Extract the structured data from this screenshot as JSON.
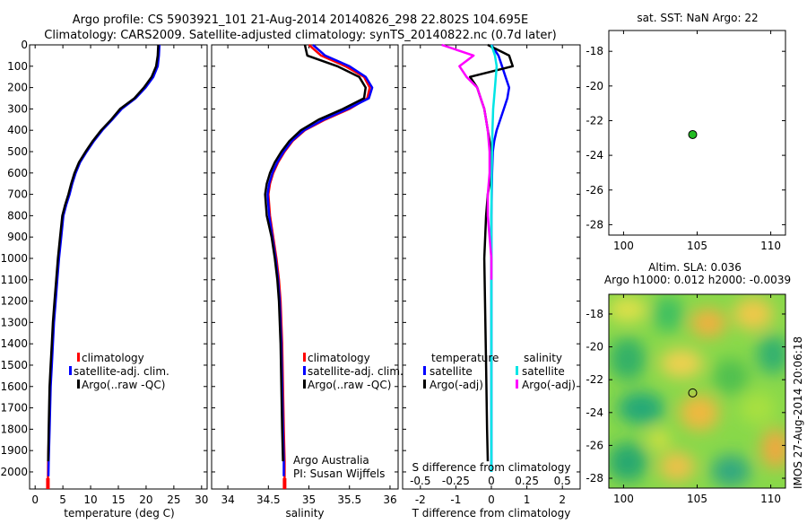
{
  "header": {
    "line1": "Argo profile: CS 5903921_101 21-Aug-2014 20140826_298 22.802S 104.695E",
    "line2": "Climatology: CARS2009. Satellite-adjusted climatology: synTS_20140822.nc (0.7d later)"
  },
  "colors": {
    "climatology": "#ff0000",
    "satellite": "#0000ff",
    "argo": "#000000",
    "sal_satellite": "#00e5e5",
    "sal_argo": "#ff00ff",
    "marker": "#22bb22"
  },
  "chart_data": [
    {
      "type": "line",
      "id": "temperature",
      "xlabel": "temperature (deg C)",
      "ylabel": "",
      "xlim": [
        -1,
        31
      ],
      "ylim": [
        2080,
        0
      ],
      "xticks": [
        0,
        5,
        10,
        15,
        20,
        25,
        30
      ],
      "yticks": [
        0,
        100,
        200,
        300,
        400,
        500,
        600,
        700,
        800,
        900,
        1000,
        1100,
        1200,
        1300,
        1400,
        1500,
        1600,
        1700,
        1800,
        1900,
        2000
      ],
      "legend": [
        "climatology",
        "satellite-adj. clim.",
        "Argo(..raw -QC)"
      ],
      "series": [
        {
          "name": "climatology",
          "color": "#ff0000",
          "x": [
            22.3,
            22.2,
            22.0,
            21.2,
            19.8,
            18.0,
            15.5,
            13.8,
            12.0,
            10.5,
            9.2,
            8.0,
            7.2,
            6.6,
            6.1,
            5.5,
            5.0,
            4.6,
            4.2,
            3.9,
            3.6,
            3.3,
            3.1,
            2.9,
            2.7,
            2.5,
            2.35,
            2.3
          ],
          "y": [
            0,
            50,
            100,
            150,
            200,
            250,
            300,
            350,
            400,
            450,
            500,
            550,
            600,
            650,
            700,
            750,
            800,
            900,
            1000,
            1100,
            1200,
            1300,
            1400,
            1500,
            1600,
            1800,
            1950,
            2060
          ]
        },
        {
          "name": "satellite-adj. clim.",
          "color": "#0000ff",
          "x": [
            22.4,
            22.3,
            22.1,
            21.3,
            19.9,
            18.1,
            15.6,
            13.9,
            12.1,
            10.6,
            9.3,
            8.1,
            7.3,
            6.7,
            6.2,
            5.6,
            5.1,
            4.7,
            4.3,
            4.0,
            3.7,
            3.4,
            3.2,
            3.0,
            2.8,
            2.6,
            2.45,
            2.4
          ],
          "y": [
            0,
            50,
            100,
            150,
            200,
            250,
            300,
            350,
            400,
            450,
            500,
            550,
            600,
            650,
            700,
            750,
            800,
            900,
            1000,
            1100,
            1200,
            1300,
            1400,
            1500,
            1600,
            1800,
            1950,
            2020
          ]
        },
        {
          "name": "Argo(..raw -QC)",
          "color": "#000000",
          "x": [
            22.2,
            22.1,
            21.8,
            21.0,
            19.6,
            17.9,
            15.3,
            13.7,
            11.9,
            10.4,
            9.1,
            7.9,
            7.1,
            6.5,
            6.0,
            5.4,
            4.9,
            4.5,
            4.1,
            3.8,
            3.5,
            3.2,
            3.0,
            2.8,
            2.6,
            2.45,
            2.35
          ],
          "y": [
            0,
            50,
            100,
            150,
            200,
            250,
            300,
            350,
            400,
            450,
            500,
            550,
            600,
            650,
            700,
            750,
            800,
            900,
            1000,
            1100,
            1200,
            1300,
            1400,
            1500,
            1600,
            1800,
            1950
          ]
        }
      ]
    },
    {
      "type": "line",
      "id": "salinity",
      "xlabel": "salinity",
      "ylabel": "",
      "xlim": [
        33.8,
        36.1
      ],
      "ylim": [
        2080,
        0
      ],
      "xticks": [
        34,
        34.5,
        35,
        35.5,
        36
      ],
      "xtick_labels": [
        "34",
        "34.5",
        "35",
        "35.5",
        "36"
      ],
      "legend": [
        "climatology",
        "satellite-adj. clim.",
        "Argo(..raw -QC)"
      ],
      "annotation": [
        "Argo Australia",
        "PI: Susan Wijffels"
      ],
      "series": [
        {
          "name": "climatology",
          "color": "#ff0000",
          "x": [
            35.0,
            35.15,
            35.45,
            35.68,
            35.75,
            35.72,
            35.5,
            35.2,
            34.95,
            34.8,
            34.7,
            34.62,
            34.56,
            34.52,
            34.5,
            34.52,
            34.56,
            34.6,
            34.63,
            34.65,
            34.67,
            34.68,
            34.69,
            34.7,
            34.7
          ],
          "y": [
            0,
            50,
            100,
            150,
            200,
            250,
            300,
            350,
            400,
            450,
            500,
            550,
            600,
            650,
            700,
            800,
            900,
            1000,
            1100,
            1200,
            1400,
            1600,
            1800,
            1950,
            2060
          ]
        },
        {
          "name": "satellite-adj. clim.",
          "color": "#0000ff",
          "x": [
            35.05,
            35.2,
            35.5,
            35.7,
            35.78,
            35.74,
            35.48,
            35.18,
            34.94,
            34.79,
            34.69,
            34.61,
            34.55,
            34.51,
            34.49,
            34.51,
            34.55,
            34.59,
            34.62,
            34.64,
            34.66,
            34.67,
            34.68,
            34.69,
            34.69
          ],
          "y": [
            0,
            50,
            100,
            150,
            200,
            250,
            300,
            350,
            400,
            450,
            500,
            550,
            600,
            650,
            700,
            800,
            900,
            1000,
            1100,
            1200,
            1400,
            1600,
            1800,
            1950,
            2020
          ]
        },
        {
          "name": "Argo(..raw -QC)",
          "color": "#000000",
          "x": [
            34.95,
            34.98,
            35.35,
            35.62,
            35.7,
            35.68,
            35.42,
            35.12,
            34.9,
            34.76,
            34.66,
            34.58,
            34.52,
            34.48,
            34.46,
            34.48,
            34.54,
            34.58,
            34.61,
            34.63,
            34.65,
            34.66,
            34.67,
            34.68
          ],
          "y": [
            0,
            50,
            100,
            150,
            200,
            250,
            300,
            350,
            400,
            450,
            500,
            550,
            600,
            650,
            700,
            800,
            900,
            1000,
            1100,
            1200,
            1400,
            1600,
            1800,
            1950
          ]
        }
      ]
    },
    {
      "type": "line",
      "id": "difference",
      "xlabel": "T difference from climatology",
      "ylabel": "",
      "xlim": [
        -2.5,
        2.5
      ],
      "ylim": [
        2080,
        0
      ],
      "xticks": [
        -2,
        -1,
        0,
        1,
        2
      ],
      "xtick_labels": [
        "-2",
        "-1",
        "0",
        "1",
        "2"
      ],
      "secondary_xlabel": "S difference from climatology",
      "secondary_ticks": [
        -0.5,
        -0.25,
        0,
        0.25,
        0.5
      ],
      "secondary_tick_labels": [
        "-0.5",
        "-0.25",
        "0",
        "0.25",
        "0.5"
      ],
      "legend_temperature": {
        "title": "temperature",
        "items": [
          "satellite",
          "Argo(-adj)"
        ]
      },
      "legend_salinity": {
        "title": "salinity",
        "items": [
          "satellite",
          "Argo(-adj)"
        ]
      },
      "series": [
        {
          "name": "temperature satellite",
          "color": "#0000ff",
          "x": [
            0,
            0.2,
            0.3,
            0.4,
            0.5,
            0.45,
            0.35,
            0.25,
            0.15,
            0.08,
            0.04,
            0.02,
            0.01,
            0,
            0,
            0
          ],
          "y": [
            0,
            50,
            100,
            150,
            200,
            250,
            300,
            350,
            400,
            450,
            500,
            600,
            700,
            800,
            1000,
            2000
          ]
        },
        {
          "name": "temperature Argo(-adj)",
          "color": "#000000",
          "x": [
            -0.1,
            0.5,
            0.6,
            -0.6,
            -0.4,
            -0.3,
            -0.2,
            -0.15,
            -0.1,
            -0.05,
            0,
            0,
            -0.1,
            -0.15,
            -0.2,
            -0.18,
            -0.15,
            -0.12,
            -0.1
          ],
          "y": [
            0,
            50,
            100,
            150,
            200,
            250,
            300,
            350,
            400,
            450,
            500,
            600,
            700,
            800,
            1000,
            1200,
            1500,
            1800,
            1950
          ]
        },
        {
          "name": "salinity satellite",
          "color": "#00e5e5",
          "x": [
            0,
            0.1,
            0.15,
            0.1,
            0.05,
            0.03,
            0.02,
            0.01,
            0,
            0,
            0,
            0
          ],
          "y": [
            0,
            50,
            100,
            200,
            300,
            400,
            500,
            600,
            800,
            1000,
            1500,
            2000
          ]
        },
        {
          "name": "salinity Argo(-adj)",
          "color": "#ff00ff",
          "x": [
            -1.4,
            -0.5,
            -0.9,
            -0.7,
            -0.4,
            -0.2,
            -0.1,
            -0.05,
            -0.05,
            -0.1,
            -0.1,
            -0.05,
            0,
            0
          ],
          "y": [
            0,
            50,
            100,
            150,
            200,
            300,
            400,
            500,
            600,
            700,
            800,
            900,
            1000,
            1100
          ]
        }
      ]
    },
    {
      "type": "scatter",
      "id": "map_sst",
      "title": "sat. SST: NaN Argo: 22",
      "xlim": [
        99,
        111
      ],
      "ylim": [
        -28.6,
        -16.8
      ],
      "xticks": [
        100,
        105,
        110
      ],
      "yticks": [
        -18,
        -20,
        -22,
        -24,
        -26,
        -28
      ],
      "points": [
        {
          "x": 104.695,
          "y": -22.802
        }
      ]
    },
    {
      "type": "heatmap",
      "id": "map_sla",
      "title_line1": "Altim. SLA: 0.036",
      "title_line2": "Argo h1000: 0.012 h2000: -0.0039",
      "xlim": [
        99,
        111
      ],
      "ylim": [
        -28.6,
        -16.8
      ],
      "xticks": [
        100,
        105,
        110
      ],
      "yticks": [
        -18,
        -20,
        -22,
        -24,
        -26,
        -28
      ],
      "points": [
        {
          "x": 104.695,
          "y": -22.802
        }
      ]
    }
  ],
  "side_label": "IMOS 27-Aug-2014 20:06:18"
}
